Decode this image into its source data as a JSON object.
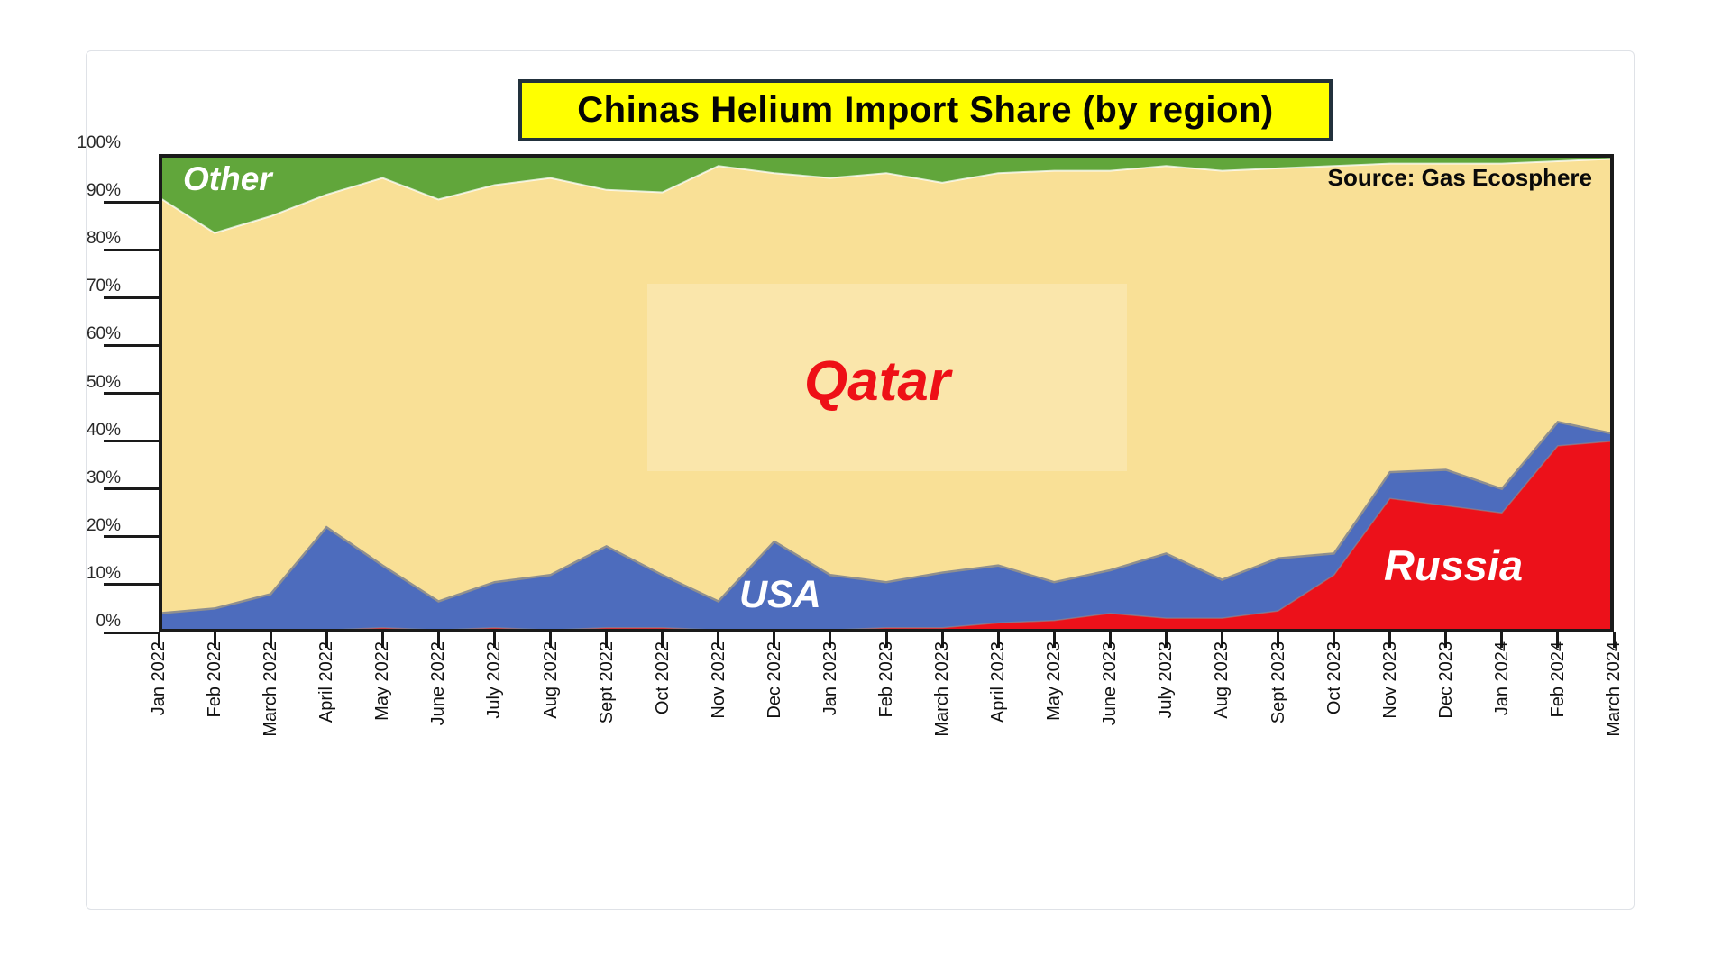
{
  "title": "Chinas Helium Import Share (by region)",
  "source": "Source: Gas Ecosphere",
  "labels": {
    "other": "Other",
    "qatar": "Qatar",
    "usa": "USA",
    "russia": "Russia"
  },
  "y_axis": {
    "ticks": [
      "100%",
      "90%",
      "80%",
      "70%",
      "60%",
      "50%",
      "40%",
      "30%",
      "20%",
      "10%",
      "0%"
    ]
  },
  "colors": {
    "qatar_area": "#f9e096",
    "other_area": "#61a63b",
    "usa_area": "#4d6cbd",
    "russia_area": "#ec111a",
    "axis": "#1a1a1a",
    "title_bg": "#ffff00",
    "qatar_text": "#ee1016",
    "boundary_gray": "#8f8f8f",
    "boundary_cream": "rgba(255,255,255,0.75)"
  },
  "chart_data": {
    "type": "area",
    "stacked": true,
    "unit": "percent",
    "title": "Chinas Helium Import Share (by region)",
    "ylim": [
      0,
      100
    ],
    "y_ticks": [
      0,
      10,
      20,
      30,
      40,
      50,
      60,
      70,
      80,
      90,
      100
    ],
    "grid": false,
    "legend": "in-plot region labels",
    "categories": [
      "Jan 2022",
      "Feb 2022",
      "March 2022",
      "April 2022",
      "May 2022",
      "June 2022",
      "July 2022",
      "Aug 2022",
      "Sept 2022",
      "Oct 2022",
      "Nov 2022",
      "Dec 2022",
      "Jan 2023",
      "Feb 2023",
      "March 2023",
      "April 2023",
      "May 2023",
      "June 2023",
      "July 2023",
      "Aug 2023",
      "Sept 2023",
      "Oct 2023",
      "Nov 2023",
      "Dec 2023",
      "Jan 2024",
      "Feb 2024",
      "March 2024"
    ],
    "series": [
      {
        "name": "Russia",
        "color": "#ec111a",
        "values": [
          0.5,
          0.5,
          0.5,
          0.5,
          1,
          0.5,
          1,
          0.5,
          1,
          1,
          0.5,
          0.5,
          0.5,
          1,
          1,
          2,
          2.5,
          4,
          3,
          3,
          4.5,
          12,
          28,
          26.5,
          25,
          39,
          40
        ]
      },
      {
        "name": "USA",
        "color": "#4d6cbd",
        "values": [
          3.5,
          4.5,
          7.5,
          21.5,
          13,
          6,
          9.5,
          11.5,
          17,
          11,
          6,
          18.5,
          11.5,
          9.5,
          11.5,
          12,
          8,
          9,
          13.5,
          8,
          11,
          4.5,
          5.5,
          7.5,
          5,
          5,
          1.5
        ]
      },
      {
        "name": "Qatar",
        "color": "#f9e096",
        "values": [
          87,
          78.5,
          79,
          69.5,
          81,
          84,
          83,
          83,
          74.5,
          80,
          91,
          77,
          83,
          85.5,
          81.5,
          82,
          86,
          83.5,
          81,
          85.5,
          81.5,
          81,
          64.5,
          64,
          68,
          54.5,
          57.5
        ]
      },
      {
        "name": "Other",
        "color": "#61a63b",
        "values": [
          9,
          16.5,
          13,
          8.5,
          5,
          9.5,
          6.5,
          5,
          7.5,
          8,
          2.5,
          4,
          5,
          4,
          6,
          4,
          3.5,
          3.5,
          2.5,
          3.5,
          3,
          2.5,
          2,
          2,
          2,
          1.5,
          1
        ]
      }
    ]
  }
}
